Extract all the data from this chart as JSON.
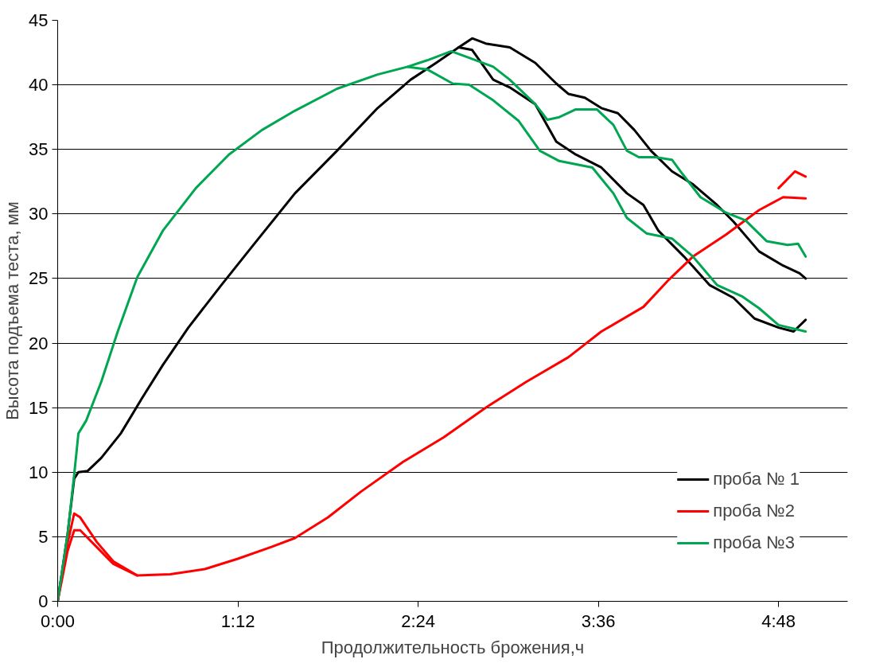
{
  "chart_data": {
    "type": "line",
    "xlabel": "Продолжительность брожения,ч",
    "ylabel": "Высота подъема теста, мм",
    "xlim": [
      0,
      5.26
    ],
    "ylim": [
      0,
      45
    ],
    "xticks": [
      {
        "value": 0,
        "label": "0:00"
      },
      {
        "value": 1.2,
        "label": "1:12"
      },
      {
        "value": 2.4,
        "label": "2:24"
      },
      {
        "value": 3.6,
        "label": "3:36"
      },
      {
        "value": 4.8,
        "label": "4:48"
      }
    ],
    "yticks": [
      0,
      5,
      10,
      15,
      20,
      25,
      30,
      35,
      40,
      45
    ],
    "grid": "y",
    "legend": "bottom right",
    "series": [
      {
        "name": "проба № 1",
        "color": "#000000",
        "x": [
          0,
          0.066,
          0.11,
          0.138,
          0.2,
          0.29,
          0.42,
          0.56,
          0.7,
          0.87,
          1.09,
          1.31,
          1.58,
          1.86,
          2.13,
          2.35,
          2.52,
          2.67,
          2.76,
          2.85,
          3.01,
          3.18,
          3.32,
          3.4,
          3.51,
          3.62,
          3.73,
          3.84,
          3.95,
          4.09,
          4.23,
          4.39,
          4.5,
          4.67,
          4.83,
          4.94,
          4.98
        ],
        "values": [
          0,
          5.2,
          9.5,
          10.0,
          10.1,
          11.1,
          13,
          15.7,
          18.3,
          21.2,
          24.5,
          27.7,
          31.6,
          34.9,
          38.2,
          40.4,
          41.7,
          42.9,
          43.6,
          43.2,
          42.9,
          41.7,
          40.1,
          39.3,
          39.0,
          38.2,
          37.8,
          36.5,
          34.9,
          33.3,
          32.3,
          30.7,
          29.4,
          27.1,
          26.0,
          25.4,
          25.0
        ]
      },
      {
        "color": "#000000",
        "x": [
          2.67,
          2.76,
          2.9,
          3.01,
          3.18,
          3.32,
          3.45,
          3.62,
          3.79,
          3.9,
          4.0,
          4.17,
          4.34,
          4.5,
          4.64,
          4.8,
          4.9,
          4.98
        ],
        "values": [
          42.9,
          42.7,
          40.4,
          39.8,
          38.5,
          35.6,
          34.6,
          33.6,
          31.6,
          30.7,
          28.7,
          26.7,
          24.5,
          23.5,
          21.9,
          21.2,
          20.9,
          21.8
        ]
      },
      {
        "name": "проба №2",
        "color": "#ff0000",
        "x": [
          0,
          0.066,
          0.11,
          0.15,
          0.26,
          0.37,
          0.53,
          0.75,
          0.98,
          1.2,
          1.42,
          1.58,
          1.8,
          2.02,
          2.3,
          2.57,
          2.85,
          3.12,
          3.4,
          3.62,
          3.9,
          4.06,
          4.23,
          4.45,
          4.67,
          4.83,
          4.98
        ],
        "values": [
          0,
          3.9,
          5.5,
          5.5,
          4.2,
          2.9,
          2.0,
          2.1,
          2.5,
          3.3,
          4.2,
          4.9,
          6.5,
          8.5,
          10.8,
          12.7,
          15.0,
          17.0,
          18.9,
          20.9,
          22.8,
          24.8,
          26.7,
          28.4,
          30.3,
          31.3,
          31.2
        ]
      },
      {
        "color": "#ff0000",
        "x": [
          0,
          0.066,
          0.11,
          0.15,
          0.26,
          0.37,
          0.53,
          4.67,
          4.8,
          4.91,
          4.98
        ],
        "values": [
          0,
          4.5,
          6.8,
          6.5,
          4.6,
          3.1,
          2.0,
          null,
          32.0,
          33.3,
          32.9
        ]
      },
      {
        "name": "проба №3",
        "color": "#00a651",
        "x": [
          0,
          0.066,
          0.11,
          0.138,
          0.19,
          0.29,
          0.4,
          0.53,
          0.7,
          0.92,
          1.14,
          1.36,
          1.58,
          1.86,
          2.13,
          2.33,
          2.46,
          2.62,
          2.74,
          2.9,
          3.01,
          3.18,
          3.26,
          3.34,
          3.45,
          3.59,
          3.7,
          3.79,
          3.87,
          3.98,
          4.09,
          4.16,
          4.28,
          4.45,
          4.58,
          4.72,
          4.86,
          4.93,
          4.98
        ],
        "values": [
          0,
          5.2,
          9.8,
          13.0,
          14.0,
          17.0,
          20.9,
          25.1,
          28.7,
          32.0,
          34.6,
          36.5,
          38.0,
          39.7,
          40.8,
          41.4,
          41.9,
          42.6,
          42.1,
          41.4,
          40.4,
          38.5,
          37.3,
          37.5,
          38.1,
          38.1,
          36.9,
          34.9,
          34.4,
          34.4,
          34.2,
          33.1,
          31.3,
          30.1,
          29.5,
          27.9,
          27.6,
          27.7,
          26.7
        ]
      },
      {
        "color": "#00a651",
        "x": [
          2.33,
          2.46,
          2.63,
          2.74,
          2.9,
          3.07,
          3.21,
          3.34,
          3.56,
          3.7,
          3.79,
          3.92,
          4.09,
          4.23,
          4.39,
          4.56,
          4.67,
          4.8,
          4.98
        ],
        "values": [
          41.4,
          41.2,
          40.1,
          40.0,
          38.8,
          37.2,
          34.9,
          34.1,
          33.6,
          31.6,
          29.7,
          28.5,
          28.1,
          26.7,
          24.5,
          23.6,
          22.7,
          21.4,
          20.9
        ]
      }
    ]
  }
}
